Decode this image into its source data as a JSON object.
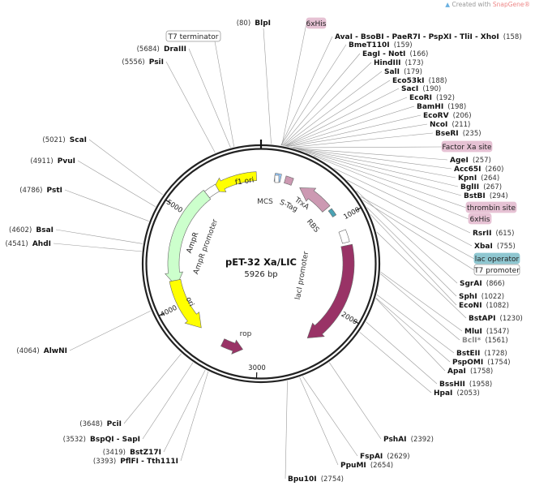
{
  "credit": {
    "prefix": "Created with",
    "brand": "SnapGene®"
  },
  "plasmid": {
    "name": "pET-32 Xa/LIC",
    "length_label": "5926 bp",
    "length": 5926
  },
  "ticks": [
    "1000",
    "2000",
    "3000",
    "4000",
    "5000"
  ],
  "features": [
    {
      "name": "f1 ori",
      "color": "#ffff00"
    },
    {
      "name": "AmpR",
      "color": "#ccffcc"
    },
    {
      "name": "AmpR promoter",
      "color": "#ffffff"
    },
    {
      "name": "ori",
      "color": "#ffff00"
    },
    {
      "name": "rop",
      "color": "#993366"
    },
    {
      "name": "lacI",
      "color": "#993366"
    },
    {
      "name": "lacI promoter",
      "color": "#ffffff"
    },
    {
      "name": "TrxA",
      "color": "#cc99b2"
    },
    {
      "name": "RBS",
      "color": "#4aa3b5"
    },
    {
      "name": "S-Tag",
      "color": "#cc99b2"
    },
    {
      "name": "MCS",
      "color": "#99ccff"
    }
  ],
  "feature_labels": [
    {
      "name": "6xHis",
      "color": "#e6c2d4"
    },
    {
      "name": "Factor Xa site",
      "color": "#e6c2d4"
    },
    {
      "name": "thrombin site",
      "color": "#e6c2d4"
    },
    {
      "name": "6xHis",
      "color": "#e6c2d4"
    },
    {
      "name": "lac operator",
      "color": "#8fc7d1"
    },
    {
      "name": "T7 promoter",
      "color": "#ffffff"
    },
    {
      "name": "T7 terminator",
      "color": "#ffffff"
    }
  ],
  "enzymes": [
    {
      "name": "BlpI",
      "pos": 80
    },
    {
      "name": "AvaI - BsoBI - PaeR7I - PspXI - TliI - XhoI",
      "pos": 158
    },
    {
      "name": "BmeT110I",
      "pos": 159
    },
    {
      "name": "EagI - NotI",
      "pos": 166
    },
    {
      "name": "HindIII",
      "pos": 173
    },
    {
      "name": "SalI",
      "pos": 179
    },
    {
      "name": "Eco53kI",
      "pos": 188
    },
    {
      "name": "SacI",
      "pos": 190
    },
    {
      "name": "EcoRI",
      "pos": 192
    },
    {
      "name": "BamHI",
      "pos": 198
    },
    {
      "name": "EcoRV",
      "pos": 206
    },
    {
      "name": "NcoI",
      "pos": 211
    },
    {
      "name": "BseRI",
      "pos": 235
    },
    {
      "name": "AgeI",
      "pos": 257
    },
    {
      "name": "Acc65I",
      "pos": 260
    },
    {
      "name": "KpnI",
      "pos": 264
    },
    {
      "name": "BglII",
      "pos": 267
    },
    {
      "name": "BstBI",
      "pos": 294
    },
    {
      "name": "RsrII",
      "pos": 615
    },
    {
      "name": "XbaI",
      "pos": 755
    },
    {
      "name": "SgrAI",
      "pos": 866
    },
    {
      "name": "SphI",
      "pos": 1022
    },
    {
      "name": "EcoNI",
      "pos": 1082
    },
    {
      "name": "BstAPI",
      "pos": 1230
    },
    {
      "name": "MluI",
      "pos": 1547
    },
    {
      "name": "BclI*",
      "pos": 1561,
      "methylation_sensitive": true
    },
    {
      "name": "BstEII",
      "pos": 1728
    },
    {
      "name": "PspOMI",
      "pos": 1754
    },
    {
      "name": "ApaI",
      "pos": 1758
    },
    {
      "name": "BssHII",
      "pos": 1958
    },
    {
      "name": "HpaI",
      "pos": 2053
    },
    {
      "name": "PshAI",
      "pos": 2392
    },
    {
      "name": "FspAI",
      "pos": 2629
    },
    {
      "name": "PpuMI",
      "pos": 2654
    },
    {
      "name": "Bpu10I",
      "pos": 2754
    },
    {
      "name": "PflFI - Tth111I",
      "pos": 3393
    },
    {
      "name": "BstZ17I",
      "pos": 3419
    },
    {
      "name": "BspQI - SapI",
      "pos": 3532
    },
    {
      "name": "PciI",
      "pos": 3648
    },
    {
      "name": "AlwNI",
      "pos": 4064
    },
    {
      "name": "AhdI",
      "pos": 4541
    },
    {
      "name": "BsaI",
      "pos": 4602
    },
    {
      "name": "PstI",
      "pos": 4786
    },
    {
      "name": "PvuI",
      "pos": 4911
    },
    {
      "name": "ScaI",
      "pos": 5021
    },
    {
      "name": "PsiI",
      "pos": 5556
    },
    {
      "name": "DraIII",
      "pos": 5684
    }
  ]
}
